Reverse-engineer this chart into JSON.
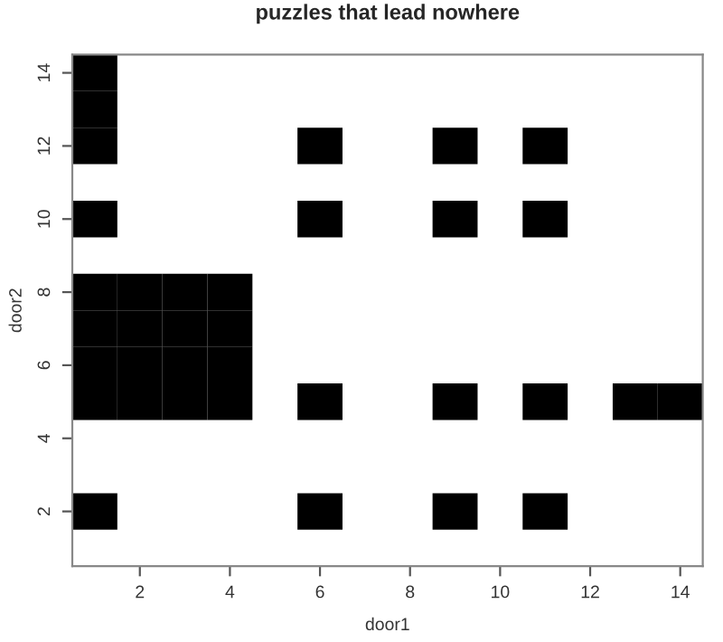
{
  "chart_data": {
    "type": "scatter",
    "title": "puzzles that lead nowhere",
    "xlabel": "door1",
    "ylabel": "door2",
    "series": [
      {
        "color": "#000000",
        "x": [
          1,
          1,
          1,
          1,
          1,
          1,
          1,
          1,
          1,
          2,
          2,
          2,
          2,
          3,
          3,
          3,
          3,
          4,
          4,
          4,
          4,
          6,
          6,
          6,
          6,
          9,
          9,
          9,
          9,
          11,
          11,
          11,
          11,
          13,
          14
        ],
        "values": [
          2,
          5,
          6,
          7,
          8,
          10,
          12,
          13,
          14,
          5,
          6,
          7,
          8,
          5,
          6,
          7,
          8,
          5,
          6,
          7,
          8,
          2,
          5,
          10,
          12,
          2,
          5,
          10,
          12,
          2,
          5,
          10,
          12,
          5,
          5
        ]
      }
    ],
    "marker": "square",
    "grid": false,
    "legend": false,
    "xlim": [
      0.5,
      14.5
    ],
    "ylim": [
      0.5,
      14.5
    ],
    "xticks": [
      2,
      4,
      6,
      8,
      10,
      12,
      14
    ],
    "yticks": [
      2,
      4,
      6,
      8,
      10,
      12,
      14
    ]
  }
}
